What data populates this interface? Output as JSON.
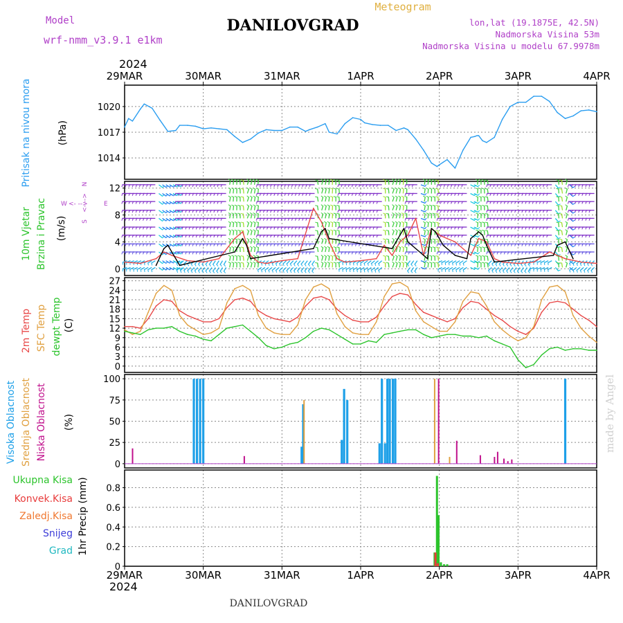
{
  "header": {
    "model_label": "Model",
    "model_name": "wrf-nmm_v3.9.1  e1km",
    "title": "DANILOVGRAD",
    "subtitle": "Meteogram",
    "lonlat": "lon,lat (19.1875E, 42.5N)",
    "elevation": "Nadmorska Visina 53m",
    "model_elevation": "Nadmorska Visina u modelu 67.9978m",
    "year_top": "2024",
    "year_bottom": "2024",
    "footer": "DANILOVGRAD",
    "watermark": "made by Angel"
  },
  "colors": {
    "pressure": "#2a9df0",
    "temp2m": "#e84848",
    "sfc": "#e0a040",
    "dewpt": "#2cc42c",
    "high_cloud": "#1ea0e8",
    "mid_cloud": "#e0a040",
    "low_cloud": "#c0108c",
    "total_precip": "#2cc42c",
    "conv_precip": "#e83c3c",
    "snow_label": "#3c3cd8",
    "grad_label": "#20b8c0",
    "wind_label_y": "#2cc42c",
    "wind_compass": "#b040c8",
    "model_text": "#b040c8",
    "subtitle_text": "#e0b040",
    "watermark": "#d0d0d0"
  },
  "chart_data": [
    {
      "type": "line",
      "panel": "pressure",
      "ylabel": "Pritisak na nivou mora",
      "unit": "(hPa)",
      "yticks": [
        1014,
        1017,
        1020
      ],
      "ylim": [
        1011.5,
        1022.5
      ],
      "grid": true,
      "x_unit": "days since 29MAR 00h",
      "xticks": [
        "29MAR",
        "30MAR",
        "31MAR",
        "1APR",
        "2APR",
        "3APR",
        "4APR"
      ],
      "series": [
        {
          "name": "",
          "x": [
            0,
            0.05,
            0.1,
            0.2,
            0.25,
            0.35,
            0.45,
            0.55,
            0.65,
            0.7,
            0.8,
            0.9,
            1.0,
            1.1,
            1.2,
            1.3,
            1.4,
            1.5,
            1.6,
            1.7,
            1.8,
            1.9,
            2.0,
            2.1,
            2.2,
            2.3,
            2.35,
            2.45,
            2.55,
            2.6,
            2.7,
            2.8,
            2.9,
            3.0,
            3.05,
            3.15,
            3.25,
            3.35,
            3.45,
            3.55,
            3.6,
            3.7,
            3.8,
            3.9,
            3.97,
            4.0,
            4.05,
            4.1,
            4.2,
            4.3,
            4.4,
            4.45,
            4.48,
            4.5,
            4.55,
            4.6,
            4.7,
            4.8,
            4.9,
            5.0,
            5.1,
            5.2,
            5.3,
            5.4,
            5.5,
            5.6,
            5.7,
            5.8,
            5.9,
            6.0
          ],
          "values": [
            1017.6,
            1018.6,
            1018.3,
            1019.7,
            1020.3,
            1019.8,
            1018.4,
            1017.1,
            1017.2,
            1017.8,
            1017.8,
            1017.7,
            1017.4,
            1017.5,
            1017.4,
            1017.3,
            1016.5,
            1015.8,
            1016.2,
            1016.9,
            1017.3,
            1017.2,
            1017.2,
            1017.6,
            1017.6,
            1017.1,
            1017.3,
            1017.6,
            1018.0,
            1017.0,
            1016.8,
            1018.0,
            1018.7,
            1018.5,
            1018.1,
            1017.9,
            1017.8,
            1017.8,
            1017.2,
            1017.5,
            1017.3,
            1016.2,
            1014.9,
            1013.4,
            1013.0,
            1013.2,
            1013.5,
            1013.8,
            1012.8,
            1014.9,
            1016.4,
            1016.5,
            1016.6,
            1016.6,
            1016.0,
            1015.8,
            1016.4,
            1018.5,
            1020.0,
            1020.5,
            1020.5,
            1021.2,
            1021.2,
            1020.6,
            1019.3,
            1018.6,
            1018.9,
            1019.5,
            1019.6,
            1019.4
          ]
        }
      ]
    },
    {
      "type": "line",
      "panel": "wind",
      "ylabel": "10m Vjetar",
      "ylabel2": "Brzina i Pravac",
      "unit": "(m/s)",
      "compass": {
        "n": "N",
        "s": "S",
        "w": "W",
        "e": "E",
        "sep": "<- -->"
      },
      "yticks": [
        0,
        4,
        8,
        12
      ],
      "ylim": [
        -1,
        13
      ],
      "grid": true,
      "x_unit": "days since 29MAR 00h",
      "series": [
        {
          "name": "",
          "color_key": "temp2m",
          "x": [
            0,
            0.2,
            0.4,
            0.5,
            0.6,
            0.8,
            1.0,
            1.2,
            1.4,
            1.5,
            1.6,
            1.7,
            1.8,
            2.0,
            2.2,
            2.4,
            2.5,
            2.6,
            2.7,
            2.8,
            3.0,
            3.2,
            3.3,
            3.4,
            3.5,
            3.6,
            3.7,
            3.8,
            3.9,
            4.0,
            4.1,
            4.2,
            4.4,
            4.5,
            4.6,
            4.7,
            4.8,
            5.0,
            5.2,
            5.4,
            5.6,
            5.8,
            6.0
          ],
          "values": [
            1.0,
            0.8,
            1.5,
            2.5,
            2.0,
            1.2,
            1.0,
            1.5,
            4.5,
            5.5,
            2.0,
            1.0,
            0.8,
            1.2,
            1.5,
            9.0,
            7.0,
            4.0,
            1.5,
            1.0,
            1.2,
            1.5,
            3.5,
            2.0,
            4.0,
            5.0,
            7.5,
            2.0,
            6.0,
            5.0,
            4.5,
            4.0,
            2.0,
            4.5,
            4.0,
            1.5,
            1.0,
            0.8,
            1.0,
            2.5,
            1.5,
            1.0,
            0.8
          ]
        },
        {
          "name": "",
          "color_key": "black",
          "x": [
            0.4,
            0.5,
            0.55,
            0.6,
            0.7,
            1.4,
            1.5,
            1.55,
            1.6,
            2.4,
            2.5,
            2.55,
            2.6,
            3.4,
            3.5,
            3.55,
            3.6,
            3.85,
            3.9,
            3.95,
            4.05,
            4.2,
            4.35,
            4.4,
            4.5,
            4.55,
            4.6,
            4.7,
            5.45,
            5.5,
            5.6,
            5.7
          ],
          "values": [
            0.5,
            3.0,
            3.5,
            2.5,
            0.5,
            2.5,
            4.5,
            3.5,
            1.5,
            3.0,
            5.5,
            6.0,
            4.5,
            3.0,
            5.0,
            6.0,
            4.0,
            1.5,
            6.0,
            5.5,
            3.5,
            2.0,
            1.5,
            4.5,
            5.5,
            5.0,
            3.5,
            1.0,
            2.0,
            3.5,
            4.0,
            1.5
          ]
        }
      ]
    },
    {
      "type": "line",
      "panel": "temperature",
      "ylabel": "2m Temp",
      "ylabel2": "SFC Temp",
      "ylabel3": "dewpt Temp",
      "unit": "(C)",
      "yticks": [
        0,
        3,
        6,
        9,
        12,
        15,
        18,
        21,
        24,
        27
      ],
      "ylim": [
        -2,
        28
      ],
      "grid": true,
      "x_unit": "days since 29MAR 00h",
      "series": [
        {
          "name": "2m Temp",
          "color_key": "temp2m",
          "x": [
            0,
            0.1,
            0.2,
            0.3,
            0.4,
            0.5,
            0.6,
            0.7,
            0.8,
            0.9,
            1.0,
            1.1,
            1.2,
            1.3,
            1.4,
            1.5,
            1.6,
            1.7,
            1.8,
            1.9,
            2.0,
            2.1,
            2.2,
            2.3,
            2.4,
            2.5,
            2.6,
            2.7,
            2.8,
            2.9,
            3.0,
            3.1,
            3.2,
            3.3,
            3.4,
            3.5,
            3.6,
            3.7,
            3.8,
            3.9,
            4.0,
            4.1,
            4.2,
            4.3,
            4.4,
            4.5,
            4.6,
            4.7,
            4.8,
            4.9,
            5.0,
            5.1,
            5.2,
            5.3,
            5.4,
            5.5,
            5.6,
            5.7,
            5.8,
            5.9,
            6.0
          ],
          "values": [
            12.5,
            12.5,
            12.0,
            15.0,
            19.0,
            21.0,
            20.5,
            17.5,
            16.0,
            15.0,
            14.0,
            14.0,
            15.0,
            18.5,
            21.0,
            21.5,
            20.5,
            17.5,
            16.0,
            15.0,
            14.5,
            14.0,
            15.5,
            19.0,
            21.5,
            22.0,
            21.0,
            18.0,
            16.0,
            14.5,
            14.0,
            14.0,
            15.5,
            19.0,
            22.0,
            23.0,
            22.5,
            19.5,
            17.0,
            16.0,
            15.0,
            14.0,
            15.0,
            18.5,
            20.5,
            20.0,
            18.0,
            16.0,
            14.5,
            12.5,
            11.0,
            10.0,
            12.0,
            17.0,
            20.0,
            20.5,
            20.0,
            18.0,
            16.0,
            14.5,
            12.5
          ]
        },
        {
          "name": "SFC Temp",
          "color_key": "sfc",
          "x": [
            0,
            0.1,
            0.2,
            0.3,
            0.4,
            0.5,
            0.6,
            0.7,
            0.8,
            0.9,
            1.0,
            1.1,
            1.2,
            1.3,
            1.4,
            1.5,
            1.6,
            1.7,
            1.8,
            1.9,
            2.0,
            2.1,
            2.2,
            2.3,
            2.4,
            2.5,
            2.6,
            2.7,
            2.8,
            2.9,
            3.0,
            3.1,
            3.2,
            3.3,
            3.4,
            3.5,
            3.6,
            3.7,
            3.8,
            3.9,
            4.0,
            4.1,
            4.2,
            4.3,
            4.4,
            4.5,
            4.6,
            4.7,
            4.8,
            4.9,
            5.0,
            5.1,
            5.2,
            5.3,
            5.4,
            5.5,
            5.6,
            5.7,
            5.8,
            5.9,
            6.0
          ],
          "values": [
            11.5,
            10.0,
            11.0,
            17.0,
            23.0,
            25.5,
            24.0,
            16.0,
            13.0,
            11.5,
            10.0,
            10.5,
            12.0,
            20.0,
            24.5,
            25.5,
            24.0,
            16.0,
            12.0,
            10.5,
            10.0,
            10.0,
            13.0,
            21.0,
            25.0,
            26.0,
            24.5,
            16.5,
            12.5,
            10.5,
            10.0,
            10.0,
            14.0,
            22.0,
            26.0,
            26.5,
            25.0,
            17.5,
            14.0,
            12.5,
            11.0,
            11.0,
            14.0,
            20.5,
            23.5,
            23.0,
            19.0,
            14.0,
            11.5,
            9.5,
            8.0,
            9.0,
            12.5,
            21.0,
            25.0,
            25.5,
            23.5,
            16.0,
            12.0,
            9.5,
            7.5
          ]
        },
        {
          "name": "dewpt Temp",
          "color_key": "dewpt",
          "x": [
            0,
            0.1,
            0.2,
            0.3,
            0.4,
            0.5,
            0.6,
            0.7,
            0.8,
            0.9,
            1.0,
            1.1,
            1.2,
            1.3,
            1.4,
            1.5,
            1.6,
            1.7,
            1.8,
            1.9,
            2.0,
            2.1,
            2.2,
            2.3,
            2.4,
            2.5,
            2.6,
            2.7,
            2.8,
            2.9,
            3.0,
            3.1,
            3.2,
            3.3,
            3.4,
            3.5,
            3.6,
            3.7,
            3.8,
            3.9,
            4.0,
            4.1,
            4.2,
            4.3,
            4.4,
            4.5,
            4.6,
            4.7,
            4.8,
            4.9,
            5.0,
            5.1,
            5.2,
            5.3,
            5.4,
            5.5,
            5.6,
            5.7,
            5.8,
            5.9,
            6.0
          ],
          "values": [
            11.0,
            10.5,
            10.0,
            11.5,
            12.0,
            12.0,
            12.5,
            11.0,
            10.0,
            9.5,
            8.5,
            8.0,
            10.0,
            12.0,
            12.5,
            13.0,
            11.0,
            9.0,
            6.5,
            5.5,
            6.0,
            7.0,
            7.5,
            9.0,
            11.0,
            12.0,
            11.5,
            10.0,
            8.5,
            7.0,
            7.0,
            8.0,
            7.5,
            10.0,
            10.5,
            11.0,
            11.5,
            11.5,
            10.0,
            9.0,
            9.5,
            10.0,
            10.0,
            9.5,
            9.5,
            9.0,
            9.5,
            8.0,
            7.0,
            6.0,
            2.0,
            -0.5,
            0.5,
            3.5,
            5.5,
            6.0,
            5.0,
            5.5,
            5.5,
            5.0,
            5.0
          ]
        }
      ]
    },
    {
      "type": "bar",
      "panel": "cloud",
      "ylabel": "Visoka Oblacnost",
      "ylabel2": "Srednja Oblacnost",
      "ylabel3": "Niska Oblacnost",
      "unit": "(%)",
      "yticks": [
        0,
        25,
        50,
        75,
        100
      ],
      "ylim": [
        -5,
        105
      ],
      "grid": true,
      "x_unit": "days since 29MAR 00h",
      "series": [
        {
          "name": "Visoka Oblacnost",
          "color_key": "high_cloud",
          "x": [
            0.88,
            0.92,
            0.96,
            1.0,
            2.25,
            2.27,
            2.76,
            2.79,
            2.83,
            3.24,
            3.27,
            3.31,
            3.34,
            3.37,
            3.41,
            3.44,
            5.6
          ],
          "values": [
            100,
            100,
            100,
            100,
            20,
            70,
            28,
            88,
            75,
            24,
            100,
            24,
            100,
            100,
            100,
            100,
            100
          ]
        },
        {
          "name": "Srednja Oblacnost",
          "color_key": "mid_cloud",
          "x": [
            2.27,
            3.93,
            4.12
          ],
          "values": [
            75,
            100,
            8
          ]
        },
        {
          "name": "Niska Oblacnost",
          "color_key": "low_cloud",
          "x": [
            0.08,
            1.5,
            3.97,
            4.2,
            4.5,
            4.68,
            4.72,
            4.8,
            4.85,
            4.9
          ],
          "values": [
            18,
            9,
            100,
            27,
            10,
            8,
            14,
            6,
            3,
            5
          ]
        }
      ]
    },
    {
      "type": "bar",
      "panel": "precip",
      "ylabel": "1hr Precip (mm)",
      "legend": [
        "Ukupna Kisa",
        "Konvek.Kisa",
        "Zaledj.Kisa",
        "Snijeg",
        "Grad"
      ],
      "yticks": [
        0,
        0.2,
        0.4,
        0.6,
        0.8
      ],
      "ylim": [
        0,
        0.98
      ],
      "grid": true,
      "x_unit": "days since 29MAR 00h",
      "series": [
        {
          "name": "Ukupna Kisa",
          "color_key": "total_precip",
          "x": [
            3.94,
            3.97,
            3.99,
            4.02,
            4.06,
            4.1
          ],
          "values": [
            0.14,
            0.92,
            0.52,
            0.04,
            0.02,
            0.02
          ]
        },
        {
          "name": "Konvek.Kisa",
          "color_key": "conv_precip",
          "x": [
            3.94,
            3.97
          ],
          "values": [
            0.14,
            0.03
          ]
        }
      ]
    }
  ]
}
